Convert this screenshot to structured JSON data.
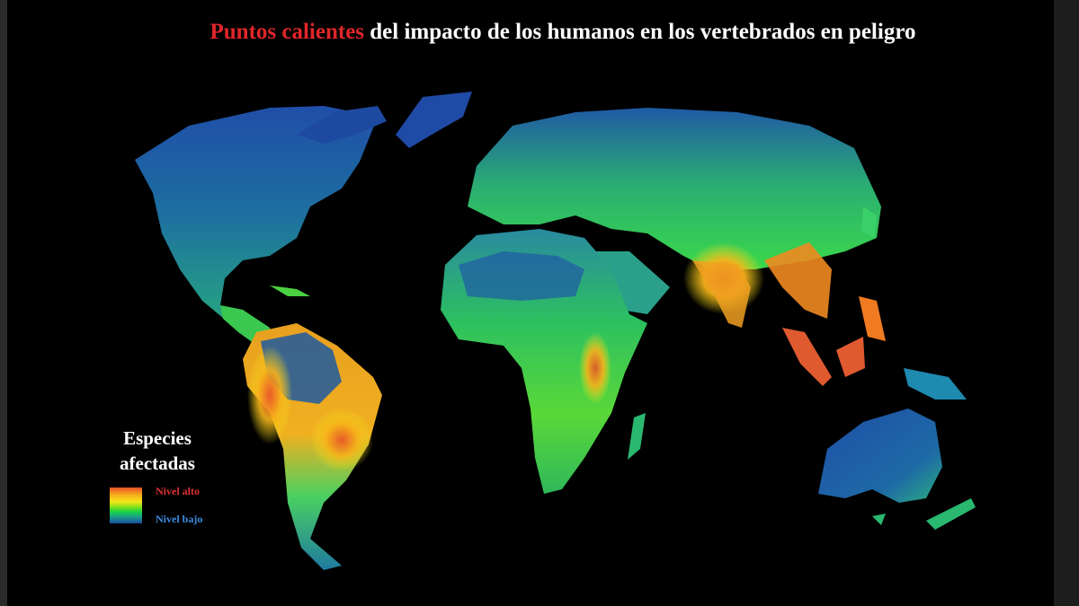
{
  "title": {
    "highlight": "Puntos calientes",
    "rest": " del impacto de los humanos en los vertebrados en peligro"
  },
  "legend": {
    "title_line1": "Especies",
    "title_line2": "afectadas",
    "high_label": "Nivel alto",
    "low_label": "Nivel bajo"
  },
  "colors": {
    "background": "#000000",
    "title_highlight": "#e0262a",
    "title_text": "#ffffff",
    "legend_high": "#e03030",
    "legend_low": "#3b8be0",
    "low_level": "#1a4aa0",
    "mid_level": "#1ad24a",
    "high_level": "#e8522a"
  }
}
